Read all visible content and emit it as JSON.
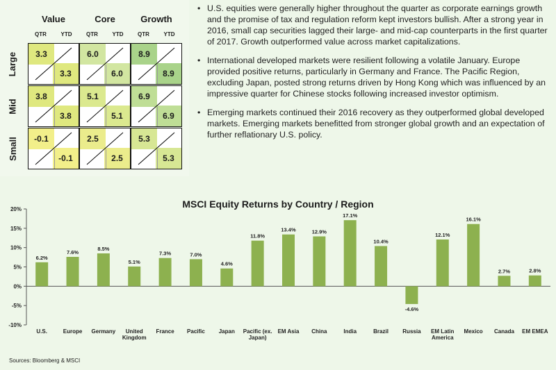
{
  "style_box": {
    "columns": [
      "Value",
      "Core",
      "Growth"
    ],
    "sub_columns": [
      "QTR",
      "YTD"
    ],
    "rows": [
      {
        "label": "Large",
        "cells": [
          {
            "qtr": "3.3",
            "ytd": "3.3",
            "qtr_color": "#dfe87f",
            "ytd_color": "#dfe87f"
          },
          {
            "qtr": "6.0",
            "ytd": "6.0",
            "qtr_color": "#d2e6a1",
            "ytd_color": "#d2e6a1"
          },
          {
            "qtr": "8.9",
            "ytd": "8.9",
            "qtr_color": "#a9d38a",
            "ytd_color": "#a9d38a"
          }
        ]
      },
      {
        "label": "Mid",
        "cells": [
          {
            "qtr": "3.8",
            "ytd": "3.8",
            "qtr_color": "#dfe87f",
            "ytd_color": "#dfe87f"
          },
          {
            "qtr": "5.1",
            "ytd": "5.1",
            "qtr_color": "#dbe98f",
            "ytd_color": "#dbe98f"
          },
          {
            "qtr": "6.9",
            "ytd": "6.9",
            "qtr_color": "#bfde96",
            "ytd_color": "#bfde96"
          }
        ]
      },
      {
        "label": "Small",
        "cells": [
          {
            "qtr": "-0.1",
            "ytd": "-0.1",
            "qtr_color": "#f2ef8a",
            "ytd_color": "#f2ef8a"
          },
          {
            "qtr": "2.5",
            "ytd": "2.5",
            "qtr_color": "#ebec8c",
            "ytd_color": "#ebec8c"
          },
          {
            "qtr": "5.3",
            "ytd": "5.3",
            "qtr_color": "#d7e794",
            "ytd_color": "#d7e794"
          }
        ]
      }
    ]
  },
  "commentary": [
    "U.S. equities were generally higher throughout the quarter as corporate earnings growth and the promise of tax and regulation reform kept investors bullish. After a strong year in 2016, small cap securities lagged their large- and mid-cap counterparts in the first quarter of 2017. Growth outperformed value across market capitalizations.",
    "International developed markets were resilient following a volatile January. Europe provided positive returns, particularly in Germany and France. The Pacific Region, excluding Japan, posted strong returns driven by Hong Kong which was influenced by an impressive quarter for Chinese stocks following increased investor optimism.",
    "Emerging markets continued their 2016 recovery as they outperformed global developed markets. Emerging markets benefitted from stronger global growth and an expectation of further reflationary U.S. policy."
  ],
  "chart_data": {
    "type": "bar",
    "title": "MSCI Equity Returns by Country / Region",
    "xlabel": "",
    "ylabel": "",
    "ylim": [
      -10,
      20
    ],
    "yticks": [
      -10,
      -5,
      0,
      5,
      10,
      15,
      20
    ],
    "ytick_labels": [
      "-10%",
      "-5%",
      "0%",
      "5%",
      "10%",
      "15%",
      "20%"
    ],
    "categories": [
      "U.S.",
      "Europe",
      "Germany",
      "United Kingdom",
      "France",
      "Pacific",
      "Japan",
      "Pacific (ex. Japan)",
      "EM Asia",
      "China",
      "India",
      "Brazil",
      "Russia",
      "EM Latin America",
      "Mexico",
      "Canada",
      "EM EMEA"
    ],
    "category_lines": [
      [
        "U.S."
      ],
      [
        "Europe"
      ],
      [
        "Germany"
      ],
      [
        "United",
        "Kingdom"
      ],
      [
        "France"
      ],
      [
        "Pacific"
      ],
      [
        "Japan"
      ],
      [
        "Pacific (ex.",
        "Japan)"
      ],
      [
        "EM Asia"
      ],
      [
        "China"
      ],
      [
        "India"
      ],
      [
        "Brazil"
      ],
      [
        "Russia"
      ],
      [
        "EM Latin",
        "America"
      ],
      [
        "Mexico"
      ],
      [
        "Canada"
      ],
      [
        "EM EMEA"
      ]
    ],
    "values": [
      6.2,
      7.6,
      8.5,
      5.1,
      7.3,
      7.0,
      4.6,
      11.8,
      13.4,
      12.9,
      17.1,
      10.4,
      -4.6,
      12.1,
      16.1,
      2.7,
      2.8
    ],
    "value_labels": [
      "6.2%",
      "7.6%",
      "8.5%",
      "5.1%",
      "7.3%",
      "7.0%",
      "4.6%",
      "11.8%",
      "13.4%",
      "12.9%",
      "17.1%",
      "10.4%",
      "-4.6%",
      "12.1%",
      "16.1%",
      "2.7%",
      "2.8%"
    ],
    "bar_color": "#8db14f",
    "grid": false,
    "legend": "none"
  },
  "source_note": "Sources: Bloomberg & MSCI"
}
